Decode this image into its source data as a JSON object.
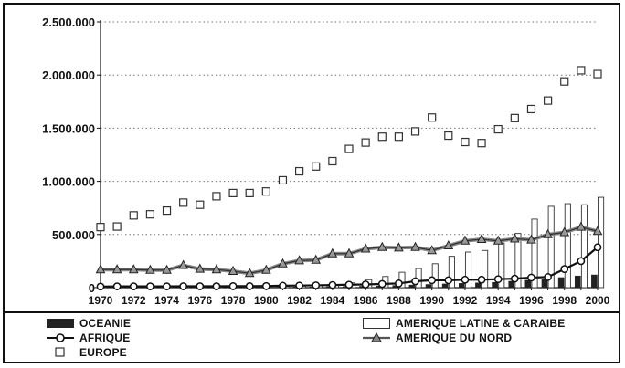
{
  "chart_data": {
    "type": "bar+line",
    "title": "",
    "xlabel": "",
    "ylabel": "",
    "ylim": [
      0,
      2500000
    ],
    "yticks": [
      "0",
      "500.000",
      "1.000.000",
      "1.500.000",
      "2.000.000",
      "2.500.000"
    ],
    "ytick_values": [
      0,
      500000,
      1000000,
      1500000,
      2000000,
      2500000
    ],
    "xlim": [
      1970,
      2000
    ],
    "xtick_labels": [
      "1970",
      "1972",
      "1974",
      "1976",
      "1978",
      "1980",
      "1982",
      "1984",
      "1986",
      "1988",
      "1990",
      "1992",
      "1994",
      "1996",
      "1998",
      "2000"
    ],
    "x": [
      1970,
      1971,
      1972,
      1973,
      1974,
      1975,
      1976,
      1977,
      1978,
      1979,
      1980,
      1981,
      1982,
      1983,
      1984,
      1985,
      1986,
      1987,
      1988,
      1989,
      1990,
      1991,
      1992,
      1993,
      1994,
      1995,
      1996,
      1997,
      1998,
      1999,
      2000
    ],
    "grid": "horizontal-dotted",
    "legend_placement": "bottom",
    "series": [
      {
        "name": "OCEANIE",
        "kind": "bar",
        "color": "#222222",
        "values": [
          3000,
          3000,
          3000,
          3000,
          3000,
          3000,
          3000,
          3000,
          3000,
          3000,
          4000,
          5000,
          6000,
          7000,
          9000,
          10000,
          13000,
          16000,
          20000,
          25000,
          30000,
          35000,
          40000,
          45000,
          50000,
          60000,
          70000,
          80000,
          95000,
          110000,
          120000
        ]
      },
      {
        "name": "AMERIQUE LATINE & CARAIBE",
        "kind": "bar",
        "color": "#ffffff",
        "values": [
          5000,
          5000,
          5000,
          5000,
          5000,
          5000,
          5000,
          5000,
          5000,
          5000,
          8000,
          12000,
          15000,
          20000,
          30000,
          45000,
          75000,
          105000,
          145000,
          180000,
          225000,
          295000,
          335000,
          350000,
          420000,
          510000,
          645000,
          765000,
          790000,
          780000,
          850000
        ]
      },
      {
        "name": "AFRIQUE",
        "kind": "line-circle",
        "color": "#111111",
        "values": [
          10000,
          12000,
          12000,
          12000,
          12000,
          13000,
          13000,
          13000,
          14000,
          14000,
          15000,
          18000,
          20000,
          22000,
          25000,
          28000,
          30000,
          35000,
          40000,
          60000,
          70000,
          70000,
          75000,
          75000,
          80000,
          85000,
          95000,
          100000,
          175000,
          250000,
          380000
        ]
      },
      {
        "name": "EUROPE",
        "kind": "marker-square",
        "color": "#ffffff",
        "values": [
          570000,
          575000,
          680000,
          690000,
          725000,
          800000,
          780000,
          860000,
          890000,
          890000,
          905000,
          1010000,
          1095000,
          1140000,
          1190000,
          1305000,
          1365000,
          1420000,
          1420000,
          1470000,
          1600000,
          1430000,
          1370000,
          1360000,
          1490000,
          1595000,
          1680000,
          1760000,
          1940000,
          2045000,
          2010000
        ]
      },
      {
        "name": "AMERIQUE DU NORD",
        "kind": "line-triangle",
        "color": "#555555",
        "values": [
          170000,
          170000,
          170000,
          165000,
          165000,
          210000,
          175000,
          170000,
          155000,
          135000,
          165000,
          225000,
          255000,
          260000,
          320000,
          320000,
          365000,
          380000,
          375000,
          380000,
          350000,
          395000,
          440000,
          455000,
          440000,
          460000,
          450000,
          500000,
          520000,
          570000,
          530000
        ]
      }
    ]
  },
  "legend": {
    "oceanie": "OCEANIE",
    "afrique": "AFRIQUE",
    "europe": "EUROPE",
    "amerique_latine": "AMERIQUE LATINE & CARAIBE",
    "amerique_nord": "AMERIQUE DU NORD"
  }
}
